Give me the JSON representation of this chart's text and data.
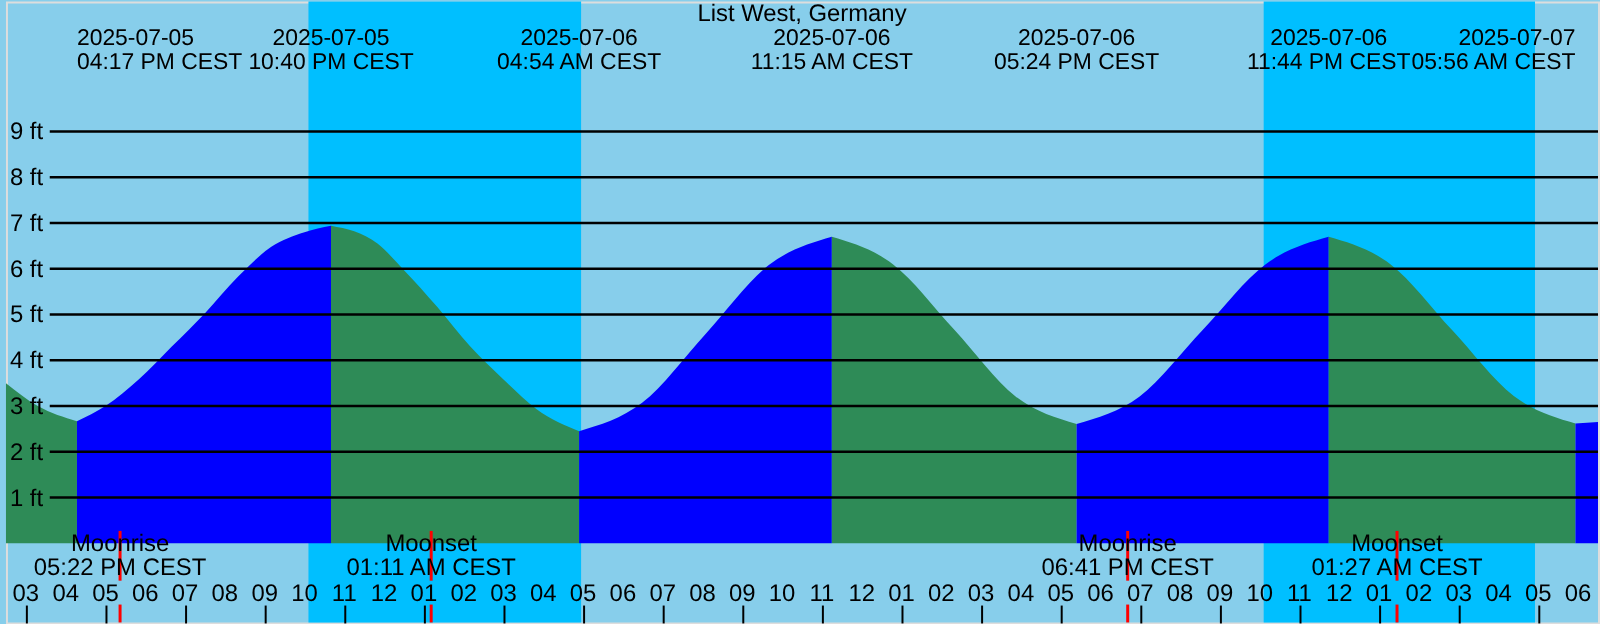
{
  "chart_data": {
    "type": "area",
    "title": "List West, Germany",
    "series": [
      {
        "color": "#2e8b57",
        "x": [
          "2025-07-05T14:30",
          "2025-07-05T15:18",
          "2025-07-05T16:17"
        ],
        "values": [
          3.5,
          3.0,
          2.67
        ]
      },
      {
        "color": "#0000ff",
        "x": [
          "2025-07-05T16:17",
          "2025-07-05T17:00",
          "2025-07-05T17:50",
          "2025-07-05T18:40",
          "2025-07-05T19:30",
          "2025-07-05T20:20",
          "2025-07-05T21:10",
          "2025-07-05T22:00",
          "2025-07-05T22:40"
        ],
        "values": [
          2.67,
          3.0,
          3.58,
          4.3,
          5.03,
          5.83,
          6.48,
          6.8,
          6.94
        ]
      },
      {
        "color": "#2e8b57",
        "x": [
          "2025-07-05T22:40",
          "2025-07-05T23:50",
          "2025-07-06T00:30",
          "2025-07-06T01:20",
          "2025-07-06T02:10",
          "2025-07-06T03:00",
          "2025-07-06T03:50",
          "2025-07-06T04:54"
        ],
        "values": [
          6.94,
          6.55,
          5.97,
          5.17,
          4.3,
          3.58,
          2.93,
          2.45
        ]
      },
      {
        "color": "#0000ff",
        "x": [
          "2025-07-06T04:54",
          "2025-07-06T06:29",
          "2025-07-06T08:05",
          "2025-07-06T09:40",
          "2025-07-06T11:15"
        ],
        "values": [
          2.45,
          3.07,
          4.58,
          6.08,
          6.7
        ]
      },
      {
        "color": "#2e8b57",
        "x": [
          "2025-07-06T11:15",
          "2025-07-06T12:47",
          "2025-07-06T14:20",
          "2025-07-06T15:52",
          "2025-07-06T17:24"
        ],
        "values": [
          6.7,
          6.1,
          4.66,
          3.21,
          2.61
        ]
      },
      {
        "color": "#0000ff",
        "x": [
          "2025-07-06T17:24",
          "2025-07-06T18:59",
          "2025-07-06T20:34",
          "2025-07-06T22:09",
          "2025-07-06T23:44"
        ],
        "values": [
          2.61,
          3.21,
          4.66,
          6.1,
          6.7
        ]
      },
      {
        "color": "#2e8b57",
        "x": [
          "2025-07-06T23:44",
          "2025-07-07T01:17",
          "2025-07-07T02:50",
          "2025-07-07T04:23",
          "2025-07-07T05:56"
        ],
        "values": [
          6.7,
          6.1,
          4.66,
          3.22,
          2.62
        ]
      },
      {
        "color": "#0000ff",
        "x": [
          "2025-07-07T05:56",
          "2025-07-07T06:30"
        ],
        "values": [
          2.62,
          2.65
        ]
      }
    ],
    "xlim": [
      "2025-07-05T14:30",
      "2025-07-07T06:30"
    ],
    "xticks": [
      {
        "value": "2025-07-05T15:00",
        "label": "03"
      },
      {
        "value": "2025-07-05T16:00",
        "label": "04"
      },
      {
        "value": "2025-07-05T17:00",
        "label": "05"
      },
      {
        "value": "2025-07-05T18:00",
        "label": "06"
      },
      {
        "value": "2025-07-05T19:00",
        "label": "07"
      },
      {
        "value": "2025-07-05T20:00",
        "label": "08"
      },
      {
        "value": "2025-07-05T21:00",
        "label": "09"
      },
      {
        "value": "2025-07-05T22:00",
        "label": "10"
      },
      {
        "value": "2025-07-05T23:00",
        "label": "11"
      },
      {
        "value": "2025-07-06T00:00",
        "label": "12"
      },
      {
        "value": "2025-07-06T01:00",
        "label": "01"
      },
      {
        "value": "2025-07-06T02:00",
        "label": "02"
      },
      {
        "value": "2025-07-06T03:00",
        "label": "03"
      },
      {
        "value": "2025-07-06T04:00",
        "label": "04"
      },
      {
        "value": "2025-07-06T05:00",
        "label": "05"
      },
      {
        "value": "2025-07-06T06:00",
        "label": "06"
      },
      {
        "value": "2025-07-06T07:00",
        "label": "07"
      },
      {
        "value": "2025-07-06T08:00",
        "label": "08"
      },
      {
        "value": "2025-07-06T09:00",
        "label": "09"
      },
      {
        "value": "2025-07-06T10:00",
        "label": "10"
      },
      {
        "value": "2025-07-06T11:00",
        "label": "11"
      },
      {
        "value": "2025-07-06T12:00",
        "label": "12"
      },
      {
        "value": "2025-07-06T13:00",
        "label": "01"
      },
      {
        "value": "2025-07-06T14:00",
        "label": "02"
      },
      {
        "value": "2025-07-06T15:00",
        "label": "03"
      },
      {
        "value": "2025-07-06T16:00",
        "label": "04"
      },
      {
        "value": "2025-07-06T17:00",
        "label": "05"
      },
      {
        "value": "2025-07-06T18:00",
        "label": "06"
      },
      {
        "value": "2025-07-06T19:00",
        "label": "07"
      },
      {
        "value": "2025-07-06T20:00",
        "label": "08"
      },
      {
        "value": "2025-07-06T21:00",
        "label": "09"
      },
      {
        "value": "2025-07-06T22:00",
        "label": "10"
      },
      {
        "value": "2025-07-06T23:00",
        "label": "11"
      },
      {
        "value": "2025-07-07T00:00",
        "label": "12"
      },
      {
        "value": "2025-07-07T01:00",
        "label": "01"
      },
      {
        "value": "2025-07-07T02:00",
        "label": "02"
      },
      {
        "value": "2025-07-07T03:00",
        "label": "03"
      },
      {
        "value": "2025-07-07T04:00",
        "label": "04"
      },
      {
        "value": "2025-07-07T05:00",
        "label": "05"
      },
      {
        "value": "2025-07-07T06:00",
        "label": "06"
      }
    ],
    "ylim": [
      -1.73,
      11.84
    ],
    "yticks": [
      {
        "value": 1,
        "label": "1 ft"
      },
      {
        "value": 2,
        "label": "2 ft"
      },
      {
        "value": 3,
        "label": "3 ft"
      },
      {
        "value": 4,
        "label": "4 ft"
      },
      {
        "value": 5,
        "label": "5 ft"
      },
      {
        "value": 6,
        "label": "6 ft"
      },
      {
        "value": 7,
        "label": "7 ft"
      },
      {
        "value": 8,
        "label": "8 ft"
      },
      {
        "value": 9,
        "label": "9 ft"
      }
    ],
    "grid": "y",
    "bands": [
      {
        "axis": "x",
        "from": "2025-07-05T22:06",
        "to": "2025-07-06T04:57",
        "color": "#00bfff"
      },
      {
        "axis": "x",
        "from": "2025-07-06T22:06",
        "to": "2025-07-07T04:55",
        "color": "#00bfff"
      }
    ],
    "ref_lines": [
      {
        "axis": "x",
        "value": "2025-07-05T17:22",
        "label": "Moonrise\n05:22 PM CEST",
        "color": "#ff0000"
      },
      {
        "axis": "x",
        "value": "2025-07-06T01:11",
        "label": "Moonset\n01:11 AM CEST",
        "color": "#ff0000"
      },
      {
        "axis": "x",
        "value": "2025-07-06T18:41",
        "label": "Moonrise\n06:41 PM CEST",
        "color": "#ff0000"
      },
      {
        "axis": "x",
        "value": "2025-07-07T01:27",
        "label": "Moonset\n01:27 AM CEST",
        "color": "#ff0000"
      }
    ],
    "annotations": [
      "2025-07-05\n04:17 PM CEST",
      "2025-07-05\n10:40 PM CEST",
      "2025-07-06\n04:54 AM CEST",
      "2025-07-06\n11:15 AM CEST",
      "2025-07-06\n05:24 PM CEST",
      "2025-07-06\n11:44 PM CEST",
      "2025-07-07\n05:56 AM CEST"
    ]
  }
}
